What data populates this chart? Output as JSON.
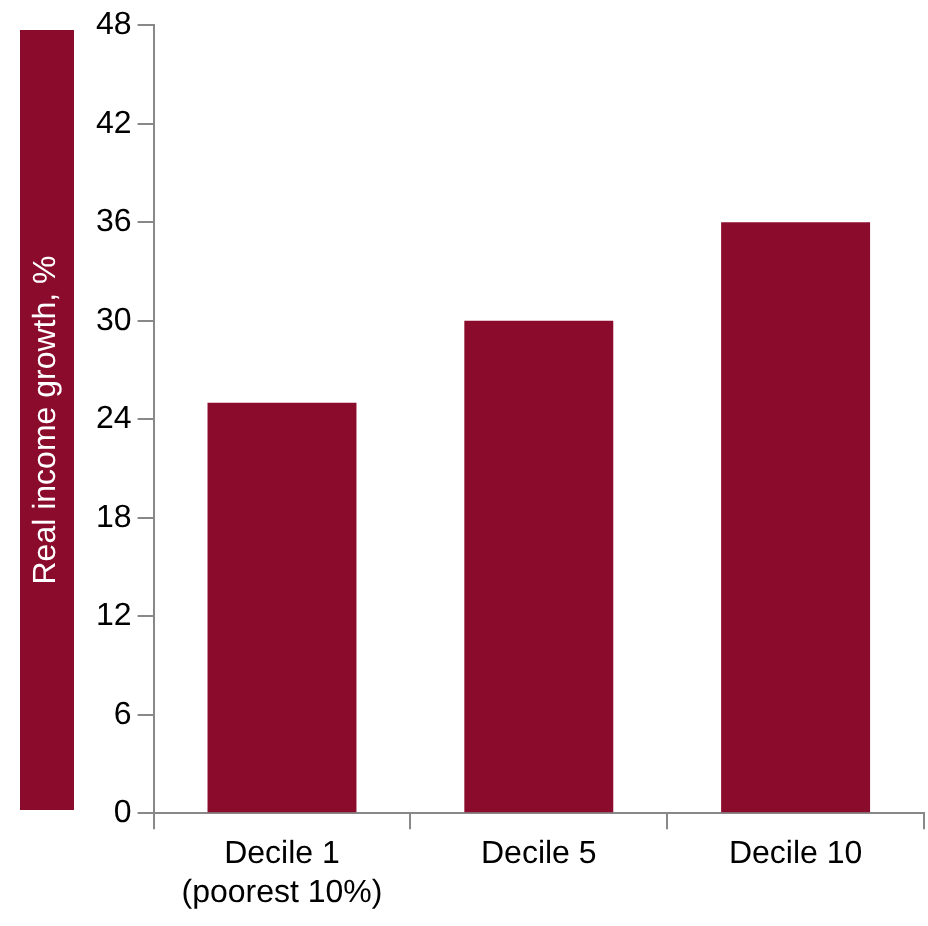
{
  "chart_data": {
    "type": "bar",
    "ylabel": "Real income growth, %",
    "categories": [
      "Decile 1\n(poorest 10%)",
      "Decile 5",
      "Decile 10"
    ],
    "values": [
      25,
      30,
      36
    ],
    "color": "#8b0b2c",
    "ylim": [
      0,
      48
    ],
    "yticks": [
      0,
      6,
      12,
      18,
      24,
      30,
      36,
      42,
      48
    ],
    "grid": false,
    "legend": false
  }
}
